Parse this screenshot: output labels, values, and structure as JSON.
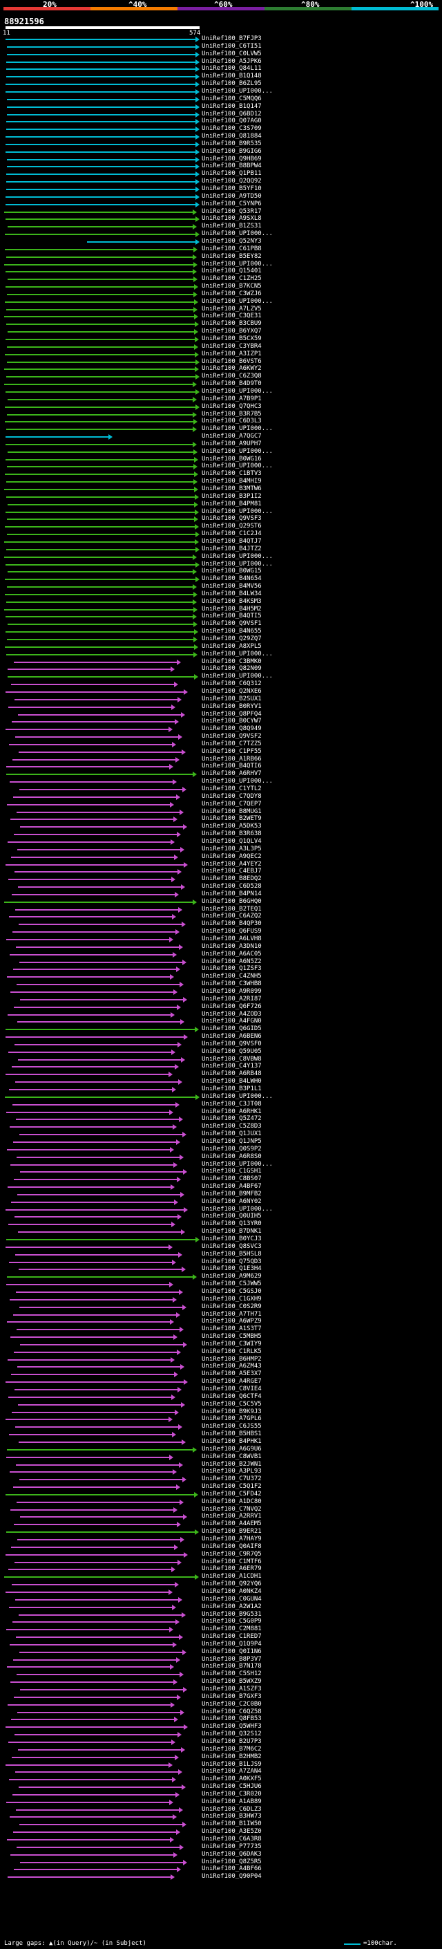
{
  "header": {
    "scale_labels": [
      "20%",
      "^40%",
      "^60%",
      "^80%",
      "^100%"
    ],
    "query_id": "88921596",
    "query_start": "11",
    "query_end": "574"
  },
  "colors": {
    "c100": "#00bcd4",
    "c80": "#3cb51a",
    "c60": "#c94fd0",
    "scale": [
      "#e53935",
      "#f57c00",
      "#7b1fa2",
      "#2e7d32",
      "#00bcd4"
    ]
  },
  "footer": {
    "legend": "Large gaps: ▲(in Query)/~ (in Subject)",
    "scale_text": "=100char."
  },
  "hits": [
    {
      "label": "UniRef100_B7FJP3",
      "color": "c100"
    },
    {
      "label": "UniRef100_C6TI51",
      "color": "c100"
    },
    {
      "label": "UniRef100_C0LVW5",
      "color": "c100"
    },
    {
      "label": "UniRef100_A5JPK6",
      "color": "c100"
    },
    {
      "label": "UniRef100_Q84L11",
      "color": "c100"
    },
    {
      "label": "UniRef100_B1Q148",
      "color": "c100"
    },
    {
      "label": "UniRef100_B6ZL95",
      "color": "c100"
    },
    {
      "label": "UniRef100_UPI000...",
      "color": "c100"
    },
    {
      "label": "UniRef100_C5MQQ6",
      "color": "c100"
    },
    {
      "label": "UniRef100_B1Q147",
      "color": "c100"
    },
    {
      "label": "UniRef100_Q6BD12",
      "color": "c100"
    },
    {
      "label": "UniRef100_Q07AG0",
      "color": "c100"
    },
    {
      "label": "UniRef100_C3S709",
      "color": "c100"
    },
    {
      "label": "UniRef100_Q81884",
      "color": "c100"
    },
    {
      "label": "UniRef100_B9R535",
      "color": "c100"
    },
    {
      "label": "UniRef100_B9GIG6",
      "color": "c100"
    },
    {
      "label": "UniRef100_Q9HB69",
      "color": "c100"
    },
    {
      "label": "UniRef100_B8BPW4",
      "color": "c100"
    },
    {
      "label": "UniRef100_Q1PB11",
      "color": "c100"
    },
    {
      "label": "UniRef100_Q2QQ92",
      "color": "c100"
    },
    {
      "label": "UniRef100_B5YF10",
      "color": "c100"
    },
    {
      "label": "UniRef100_A9TD50",
      "color": "c100"
    },
    {
      "label": "UniRef100_C5YNP6",
      "color": "c100"
    },
    {
      "label": "UniRef100_Q53R17",
      "color": "c80"
    },
    {
      "label": "UniRef100_A9SXL8",
      "color": "c80"
    },
    {
      "label": "UniRef100_B1ZS31",
      "color": "c80"
    },
    {
      "label": "UniRef100_UPI000...",
      "color": "c80"
    },
    {
      "label": "UniRef100_Q52NY3",
      "color": "c100"
    },
    {
      "label": "UniRef100_C61PB8",
      "color": "c80"
    },
    {
      "label": "UniRef100_B5EY82",
      "color": "c80"
    },
    {
      "label": "UniRef100_UPI000...",
      "color": "c80"
    },
    {
      "label": "UniRef100_Q15401",
      "color": "c80"
    },
    {
      "label": "UniRef100_C1ZH25",
      "color": "c80"
    },
    {
      "label": "UniRef100_B7KCN5",
      "color": "c80"
    },
    {
      "label": "UniRef100_C3WZJ6",
      "color": "c80"
    },
    {
      "label": "UniRef100_UPI000...",
      "color": "c80"
    },
    {
      "label": "UniRef100_A7LZV5",
      "color": "c80"
    },
    {
      "label": "UniRef100_C3QE31",
      "color": "c80"
    },
    {
      "label": "UniRef100_B3CBU9",
      "color": "c80"
    },
    {
      "label": "UniRef100_B6YXQ7",
      "color": "c80"
    },
    {
      "label": "UniRef100_B5CX59",
      "color": "c80"
    },
    {
      "label": "UniRef100_C3YBR4",
      "color": "c80"
    },
    {
      "label": "UniRef100_A3IZP1",
      "color": "c80"
    },
    {
      "label": "UniRef100_B6VST6",
      "color": "c80"
    },
    {
      "label": "UniRef100_A6KWY2",
      "color": "c80"
    },
    {
      "label": "UniRef100_C6Z3Q8",
      "color": "c80"
    },
    {
      "label": "UniRef100_B4D9T0",
      "color": "c80"
    },
    {
      "label": "UniRef100_UPI000...",
      "color": "c80"
    },
    {
      "label": "UniRef100_A7B9P1",
      "color": "c80"
    },
    {
      "label": "UniRef100_Q7QHC3",
      "color": "c80"
    },
    {
      "label": "UniRef100_B3R7B5",
      "color": "c80"
    },
    {
      "label": "UniRef100_C6D3L3",
      "color": "c80"
    },
    {
      "label": "UniRef100_UPI000...",
      "color": "c80"
    },
    {
      "label": "UniRef100_A7QGC7",
      "color": "c100"
    },
    {
      "label": "UniRef100_A9UPH7",
      "color": "c80"
    },
    {
      "label": "UniRef100_UPI000...",
      "color": "c80"
    },
    {
      "label": "UniRef100_B0WG16",
      "color": "c80"
    },
    {
      "label": "UniRef100_UPI000...",
      "color": "c80"
    },
    {
      "label": "UniRef100_C1BTV3",
      "color": "c80"
    },
    {
      "label": "UniRef100_B4MHI9",
      "color": "c80"
    },
    {
      "label": "UniRef100_B3MTW6",
      "color": "c80"
    },
    {
      "label": "UniRef100_B3P1I2",
      "color": "c80"
    },
    {
      "label": "UniRef100_B4PM81",
      "color": "c80"
    },
    {
      "label": "UniRef100_UPI000...",
      "color": "c80"
    },
    {
      "label": "UniRef100_Q9VSF3",
      "color": "c80"
    },
    {
      "label": "UniRef100_Q29ST6",
      "color": "c80"
    },
    {
      "label": "UniRef100_C1C2J4",
      "color": "c80"
    },
    {
      "label": "UniRef100_B4QTJ7",
      "color": "c80"
    },
    {
      "label": "UniRef100_B4JTZ2",
      "color": "c80"
    },
    {
      "label": "UniRef100_UPI000...",
      "color": "c80"
    },
    {
      "label": "UniRef100_UPI000...",
      "color": "c80"
    },
    {
      "label": "UniRef100_B0WG15",
      "color": "c80"
    },
    {
      "label": "UniRef100_B4N654",
      "color": "c80"
    },
    {
      "label": "UniRef100_B4MV56",
      "color": "c80"
    },
    {
      "label": "UniRef100_B4LW34",
      "color": "c80"
    },
    {
      "label": "UniRef100_B4KSM3",
      "color": "c80"
    },
    {
      "label": "UniRef100_B4H5M2",
      "color": "c80"
    },
    {
      "label": "UniRef100_B4QTI5",
      "color": "c80"
    },
    {
      "label": "UniRef100_Q9VSF1",
      "color": "c80"
    },
    {
      "label": "UniRef100_B4N655",
      "color": "c80"
    },
    {
      "label": "UniRef100_Q29ZQ7",
      "color": "c80"
    },
    {
      "label": "UniRef100_A8XPL5",
      "color": "c80"
    },
    {
      "label": "UniRef100_UPI000...",
      "color": "c80"
    },
    {
      "label": "UniRef100_C3BMK0",
      "color": "c60"
    },
    {
      "label": "UniRef100_Q82N09",
      "color": "c60"
    },
    {
      "label": "UniRef100_UPI000...",
      "color": "c80"
    },
    {
      "label": "UniRef100_C6Q312",
      "color": "c60"
    },
    {
      "label": "UniRef100_Q2NXE6",
      "color": "c60"
    },
    {
      "label": "UniRef100_B2SUX1",
      "color": "c60"
    },
    {
      "label": "UniRef100_B0RYV1",
      "color": "c60"
    },
    {
      "label": "UniRef100_Q8PFQ4",
      "color": "c60"
    },
    {
      "label": "UniRef100_B0CYW7",
      "color": "c60"
    },
    {
      "label": "UniRef100_Q8Q949",
      "color": "c60"
    },
    {
      "label": "UniRef100_Q9VSF2",
      "color": "c60"
    },
    {
      "label": "UniRef100_C7TZZ5",
      "color": "c60"
    },
    {
      "label": "UniRef100_C1PF55",
      "color": "c60"
    },
    {
      "label": "UniRef100_A1RB66",
      "color": "c60"
    },
    {
      "label": "UniRef100_B4QTI6",
      "color": "c60"
    },
    {
      "label": "UniRef100_A6RHV7",
      "color": "c80"
    },
    {
      "label": "UniRef100_UPI000...",
      "color": "c60"
    },
    {
      "label": "UniRef100_C1YTL2",
      "color": "c60"
    },
    {
      "label": "UniRef100_C7QDY8",
      "color": "c60"
    },
    {
      "label": "UniRef100_C7QEP7",
      "color": "c60"
    },
    {
      "label": "UniRef100_B8MUG1",
      "color": "c60"
    },
    {
      "label": "UniRef100_B2WET9",
      "color": "c60"
    },
    {
      "label": "UniRef100_A5DK53",
      "color": "c60"
    },
    {
      "label": "UniRef100_B3R638",
      "color": "c60"
    },
    {
      "label": "UniRef100_Q1QLV4",
      "color": "c60"
    },
    {
      "label": "UniRef100_A3L3P5",
      "color": "c60"
    },
    {
      "label": "UniRef100_A9QEC2",
      "color": "c60"
    },
    {
      "label": "UniRef100_A4YEY2",
      "color": "c60"
    },
    {
      "label": "UniRef100_C4EBJ7",
      "color": "c60"
    },
    {
      "label": "UniRef100_B8EDQ2",
      "color": "c60"
    },
    {
      "label": "UniRef100_C6D528",
      "color": "c60"
    },
    {
      "label": "UniRef100_B4PN14",
      "color": "c60"
    },
    {
      "label": "UniRef100_B6GHQ0",
      "color": "c80"
    },
    {
      "label": "UniRef100_B2TEQ1",
      "color": "c60"
    },
    {
      "label": "UniRef100_C6AZQ2",
      "color": "c60"
    },
    {
      "label": "UniRef100_B4QP30",
      "color": "c60"
    },
    {
      "label": "UniRef100_Q6FUS9",
      "color": "c60"
    },
    {
      "label": "UniRef100_A6LVH8",
      "color": "c60"
    },
    {
      "label": "UniRef100_A3DN10",
      "color": "c60"
    },
    {
      "label": "UniRef100_A6AC05",
      "color": "c60"
    },
    {
      "label": "UniRef100_A6N5Z2",
      "color": "c60"
    },
    {
      "label": "UniRef100_Q1ZSF3",
      "color": "c60"
    },
    {
      "label": "UniRef100_C4ZNH5",
      "color": "c60"
    },
    {
      "label": "UniRef100_C3WHB8",
      "color": "c60"
    },
    {
      "label": "UniRef100_A9R099",
      "color": "c60"
    },
    {
      "label": "UniRef100_A2RI87",
      "color": "c60"
    },
    {
      "label": "UniRef100_Q6F726",
      "color": "c60"
    },
    {
      "label": "UniRef100_A4ZOD3",
      "color": "c60"
    },
    {
      "label": "UniRef100_A4FGN0",
      "color": "c60"
    },
    {
      "label": "UniRef100_Q6GID5",
      "color": "c80"
    },
    {
      "label": "UniRef100_A6BEN6",
      "color": "c60"
    },
    {
      "label": "UniRef100_Q9VSF0",
      "color": "c60"
    },
    {
      "label": "UniRef100_Q59U05",
      "color": "c60"
    },
    {
      "label": "UniRef100_C8VBW8",
      "color": "c60"
    },
    {
      "label": "UniRef100_C4Y137",
      "color": "c60"
    },
    {
      "label": "UniRef100_A6RB48",
      "color": "c60"
    },
    {
      "label": "UniRef100_B4LWH0",
      "color": "c60"
    },
    {
      "label": "UniRef100_B3P1L1",
      "color": "c60"
    },
    {
      "label": "UniRef100_UPI000...",
      "color": "c80"
    },
    {
      "label": "UniRef100_C3JT08",
      "color": "c60"
    },
    {
      "label": "UniRef100_A6RHK1",
      "color": "c60"
    },
    {
      "label": "UniRef100_Q5Z472",
      "color": "c60"
    },
    {
      "label": "UniRef100_C5Z8D3",
      "color": "c60"
    },
    {
      "label": "UniRef100_Q1JUX1",
      "color": "c60"
    },
    {
      "label": "UniRef100_Q1JNP5",
      "color": "c60"
    },
    {
      "label": "UniRef100_Q0S9P2",
      "color": "c60"
    },
    {
      "label": "UniRef100_A6R8S0",
      "color": "c60"
    },
    {
      "label": "UniRef100_UPI000...",
      "color": "c60"
    },
    {
      "label": "UniRef100_C1GSH1",
      "color": "c60"
    },
    {
      "label": "UniRef100_C8BS07",
      "color": "c60"
    },
    {
      "label": "UniRef100_A4BF67",
      "color": "c60"
    },
    {
      "label": "UniRef100_B9MFB2",
      "color": "c60"
    },
    {
      "label": "UniRef100_A6NY02",
      "color": "c60"
    },
    {
      "label": "UniRef100_UPI000...",
      "color": "c60"
    },
    {
      "label": "UniRef100_Q0UIH5",
      "color": "c60"
    },
    {
      "label": "UniRef100_Q13YR0",
      "color": "c60"
    },
    {
      "label": "UniRef100_B7DNK1",
      "color": "c60"
    },
    {
      "label": "UniRef100_B0YCJ3",
      "color": "c80"
    },
    {
      "label": "UniRef100_Q8SVC3",
      "color": "c60"
    },
    {
      "label": "UniRef100_B5HSL8",
      "color": "c60"
    },
    {
      "label": "UniRef100_Q75QD3",
      "color": "c60"
    },
    {
      "label": "UniRef100_Q1E3H4",
      "color": "c60"
    },
    {
      "label": "UniRef100_A9M629",
      "color": "c80"
    },
    {
      "label": "UniRef100_C5JWW5",
      "color": "c60"
    },
    {
      "label": "UniRef100_C5GSJ0",
      "color": "c60"
    },
    {
      "label": "UniRef100_C1GXH9",
      "color": "c60"
    },
    {
      "label": "UniRef100_C0S2R9",
      "color": "c60"
    },
    {
      "label": "UniRef100_A7TH71",
      "color": "c60"
    },
    {
      "label": "UniRef100_A6WPZ9",
      "color": "c60"
    },
    {
      "label": "UniRef100_A1S3T7",
      "color": "c60"
    },
    {
      "label": "UniRef100_C5MBH5",
      "color": "c60"
    },
    {
      "label": "UniRef100_C3WIY9",
      "color": "c60"
    },
    {
      "label": "UniRef100_C1RLK5",
      "color": "c60"
    },
    {
      "label": "UniRef100_B6HMP2",
      "color": "c60"
    },
    {
      "label": "UniRef100_A6ZM43",
      "color": "c60"
    },
    {
      "label": "UniRef100_A5E3X7",
      "color": "c60"
    },
    {
      "label": "UniRef100_A4RGE7",
      "color": "c60"
    },
    {
      "label": "UniRef100_C8VIE4",
      "color": "c60"
    },
    {
      "label": "UniRef100_Q6CTF4",
      "color": "c60"
    },
    {
      "label": "UniRef100_C5C5V5",
      "color": "c60"
    },
    {
      "label": "UniRef100_B9K9J3",
      "color": "c60"
    },
    {
      "label": "UniRef100_A7GPL6",
      "color": "c60"
    },
    {
      "label": "UniRef100_C6JS55",
      "color": "c60"
    },
    {
      "label": "UniRef100_B5HBS1",
      "color": "c60"
    },
    {
      "label": "UniRef100_B4PHK1",
      "color": "c60"
    },
    {
      "label": "UniRef100_A6G9U6",
      "color": "c80"
    },
    {
      "label": "UniRef100_C8WVB1",
      "color": "c60"
    },
    {
      "label": "UniRef100_B2JWN1",
      "color": "c60"
    },
    {
      "label": "UniRef100_A3PL93",
      "color": "c60"
    },
    {
      "label": "UniRef100_C7U372",
      "color": "c60"
    },
    {
      "label": "UniRef100_C5Q1F2",
      "color": "c60"
    },
    {
      "label": "UniRef100_C5FD42",
      "color": "c80"
    },
    {
      "label": "UniRef100_A1DC80",
      "color": "c60"
    },
    {
      "label": "UniRef100_C7NVQ2",
      "color": "c60"
    },
    {
      "label": "UniRef100_A2RRV1",
      "color": "c60"
    },
    {
      "label": "UniRef100_A4AEM5",
      "color": "c60"
    },
    {
      "label": "UniRef100_B9ER21",
      "color": "c80"
    },
    {
      "label": "UniRef100_A7HAY9",
      "color": "c60"
    },
    {
      "label": "UniRef100_Q0AIF8",
      "color": "c60"
    },
    {
      "label": "UniRef100_C9R7Q5",
      "color": "c60"
    },
    {
      "label": "UniRef100_C1MTF6",
      "color": "c60"
    },
    {
      "label": "UniRef100_A6ER79",
      "color": "c60"
    },
    {
      "label": "UniRef100_A1CDH1",
      "color": "c80"
    },
    {
      "label": "UniRef100_Q92YQ6",
      "color": "c60"
    },
    {
      "label": "UniRef100_A0NKZ4",
      "color": "c60"
    },
    {
      "label": "UniRef100_C0GUN4",
      "color": "c60"
    },
    {
      "label": "UniRef100_A2W1A2",
      "color": "c60"
    },
    {
      "label": "UniRef100_B9G531",
      "color": "c60"
    },
    {
      "label": "UniRef100_C5G0P9",
      "color": "c60"
    },
    {
      "label": "UniRef100_C2M881",
      "color": "c60"
    },
    {
      "label": "UniRef100_C1RED7",
      "color": "c60"
    },
    {
      "label": "UniRef100_Q1Q9P4",
      "color": "c60"
    },
    {
      "label": "UniRef100_Q0I1N6",
      "color": "c60"
    },
    {
      "label": "UniRef100_B8P3V7",
      "color": "c60"
    },
    {
      "label": "UniRef100_B7N178",
      "color": "c60"
    },
    {
      "label": "UniRef100_C5SH12",
      "color": "c60"
    },
    {
      "label": "UniRef100_B5WXZ9",
      "color": "c60"
    },
    {
      "label": "UniRef100_A1SZF3",
      "color": "c60"
    },
    {
      "label": "UniRef100_B7GXF3",
      "color": "c60"
    },
    {
      "label": "UniRef100_C2C0B0",
      "color": "c60"
    },
    {
      "label": "UniRef100_C6QZ58",
      "color": "c60"
    },
    {
      "label": "UniRef100_Q8FB53",
      "color": "c60"
    },
    {
      "label": "UniRef100_Q5WHF3",
      "color": "c60"
    },
    {
      "label": "UniRef100_Q32S12",
      "color": "c60"
    },
    {
      "label": "UniRef100_B2U7P3",
      "color": "c60"
    },
    {
      "label": "UniRef100_B7M6C2",
      "color": "c60"
    },
    {
      "label": "UniRef100_B2HMB2",
      "color": "c60"
    },
    {
      "label": "UniRef100_B1LJS9",
      "color": "c60"
    },
    {
      "label": "UniRef100_A7ZAN4",
      "color": "c60"
    },
    {
      "label": "UniRef100_A0KXF5",
      "color": "c60"
    },
    {
      "label": "UniRef100_C5HJU6",
      "color": "c60"
    },
    {
      "label": "UniRef100_C3R020",
      "color": "c60"
    },
    {
      "label": "UniRef100_A1AB89",
      "color": "c60"
    },
    {
      "label": "UniRef100_C6DLZ3",
      "color": "c60"
    },
    {
      "label": "UniRef100_B3HW73",
      "color": "c60"
    },
    {
      "label": "UniRef100_B1IW50",
      "color": "c60"
    },
    {
      "label": "UniRef100_A3E5Z0",
      "color": "c60"
    },
    {
      "label": "UniRef100_C6A3R8",
      "color": "c60"
    },
    {
      "label": "UniRef100_P77735",
      "color": "c60"
    },
    {
      "label": "UniRef100_Q6DAK3",
      "color": "c60"
    },
    {
      "label": "UniRef100_Q8Z5R5",
      "color": "c60"
    },
    {
      "label": "UniRef100_A4BF66",
      "color": "c60"
    },
    {
      "label": "UniRef100_Q90P04",
      "color": "c60"
    }
  ]
}
